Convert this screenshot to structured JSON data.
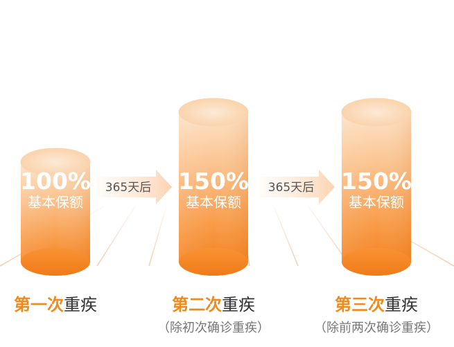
{
  "chart_data": {
    "type": "bar",
    "style": "3d-cylinder",
    "categories": [
      "第一次重疾",
      "第二次重疾",
      "第三次重疾"
    ],
    "values": [
      100,
      150,
      150
    ],
    "value_labels": [
      "100%",
      "150%",
      "150%"
    ],
    "unit": "%",
    "value_caption": "基本保额",
    "bars": [
      {
        "label": "100%",
        "caption": "基本保额"
      },
      {
        "label": "150%",
        "caption": "基本保额"
      },
      {
        "label": "150%",
        "caption": "基本保额"
      }
    ],
    "arrows": [
      {
        "label": "365天后"
      },
      {
        "label": "365天后"
      }
    ],
    "captions": [
      {
        "highlight": "第一次",
        "rest": "重疾",
        "note": ""
      },
      {
        "highlight": "第二次",
        "rest": "重疾",
        "note": "（除初次确诊重疾）"
      },
      {
        "highlight": "第三次",
        "rest": "重疾",
        "note": "（除前两次确诊重疾）"
      }
    ],
    "colors": {
      "cylinder_top": "#fde2c4",
      "cylinder_upper": "#fcc896",
      "cylinder_lower": "#f57f1e",
      "cylinder_base": "#f6891e",
      "accent_text": "#f08a1c",
      "grid": "#f7dcc6"
    }
  }
}
